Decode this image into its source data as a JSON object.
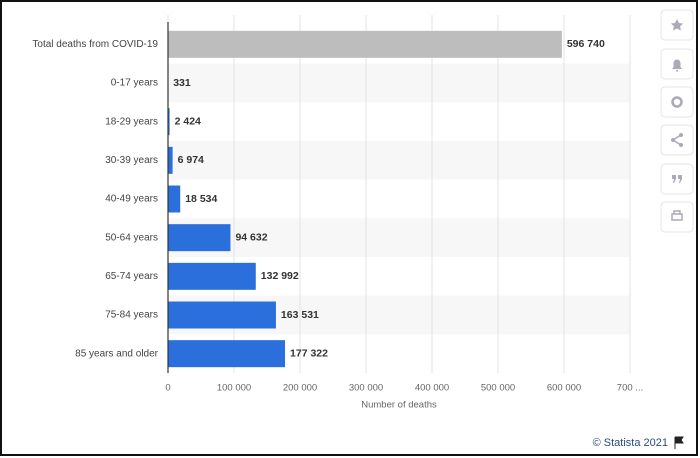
{
  "chart_data": {
    "type": "bar",
    "orientation": "horizontal",
    "categories": [
      "Total deaths from COVID-19",
      "0-17 years",
      "18-29 years",
      "30-39 years",
      "40-49 years",
      "50-64 years",
      "65-74 years",
      "75-84 years",
      "85 years and older"
    ],
    "values": [
      596740,
      331,
      2424,
      6974,
      18534,
      94632,
      132992,
      163531,
      177322
    ],
    "value_labels": [
      "596 740",
      "331",
      "2 424",
      "6 974",
      "18 534",
      "94 632",
      "132 992",
      "163 531",
      "177 322"
    ],
    "colors": [
      "#bdbdbd",
      "#2a6fdb",
      "#2a6fdb",
      "#2a6fdb",
      "#2a6fdb",
      "#2a6fdb",
      "#2a6fdb",
      "#2a6fdb",
      "#2a6fdb"
    ],
    "xlim": [
      0,
      700000
    ],
    "xticks": [
      0,
      {
        "value": 100000,
        "label": "100 000"
      },
      {
        "value": 200000,
        "label": "200 000"
      },
      {
        "value": 300000,
        "label": "300 000"
      },
      {
        "value": 400000,
        "label": "400 000"
      },
      {
        "value": 500000,
        "label": "500 000"
      },
      {
        "value": 600000,
        "label": "600 000"
      },
      {
        "value": 700000,
        "label": "700 ..."
      }
    ],
    "xlabel": "Number of deaths",
    "grid": true,
    "source": "© Statista 2021"
  }
}
